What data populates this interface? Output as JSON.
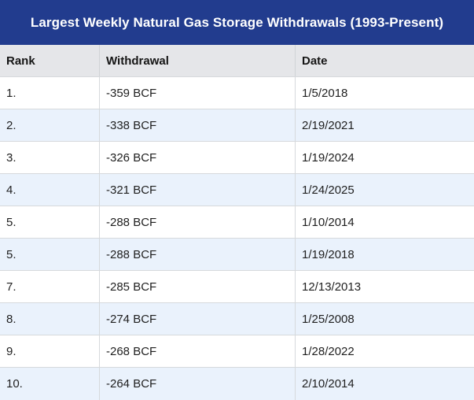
{
  "title": "Largest Weekly Natural Gas Storage Withdrawals (1993-Present)",
  "colors": {
    "banner_bg": "#223c8e",
    "banner_text": "#ffffff",
    "header_bg": "#e5e6e9",
    "alt_row_bg": "#eaf2fc",
    "row_bg": "#ffffff",
    "grid_line": "#d6d9dc",
    "body_text": "#1f1f1f"
  },
  "table": {
    "columns": [
      {
        "label": "Rank"
      },
      {
        "label": "Withdrawal"
      },
      {
        "label": "Date"
      }
    ],
    "rows": [
      {
        "rank": "1.",
        "withdrawal": "-359 BCF",
        "date": "1/5/2018"
      },
      {
        "rank": "2.",
        "withdrawal": "-338 BCF",
        "date": "2/19/2021"
      },
      {
        "rank": "3.",
        "withdrawal": "-326 BCF",
        "date": "1/19/2024"
      },
      {
        "rank": "4.",
        "withdrawal": "-321 BCF",
        "date": "1/24/2025"
      },
      {
        "rank": "5.",
        "withdrawal": "-288 BCF",
        "date": "1/10/2014"
      },
      {
        "rank": "5.",
        "withdrawal": "-288 BCF",
        "date": "1/19/2018"
      },
      {
        "rank": "7.",
        "withdrawal": "-285 BCF",
        "date": "12/13/2013"
      },
      {
        "rank": "8.",
        "withdrawal": "-274 BCF",
        "date": "1/25/2008"
      },
      {
        "rank": "9.",
        "withdrawal": "-268 BCF",
        "date": "1/28/2022"
      },
      {
        "rank": "10.",
        "withdrawal": "-264 BCF",
        "date": "2/10/2014"
      }
    ]
  },
  "chart_data": {
    "type": "table",
    "title": "Largest Weekly Natural Gas Storage Withdrawals (1993-Present)",
    "categories": [
      "Rank",
      "Withdrawal",
      "Date"
    ],
    "series": [
      {
        "name": "Withdrawal (BCF)",
        "values": [
          -359,
          -338,
          -326,
          -321,
          -288,
          -288,
          -285,
          -274,
          -268,
          -264
        ]
      },
      {
        "name": "Date",
        "values": [
          "1/5/2018",
          "2/19/2021",
          "1/19/2024",
          "1/24/2025",
          "1/10/2014",
          "1/19/2018",
          "12/13/2013",
          "1/25/2008",
          "1/28/2022",
          "2/10/2014"
        ]
      }
    ]
  }
}
